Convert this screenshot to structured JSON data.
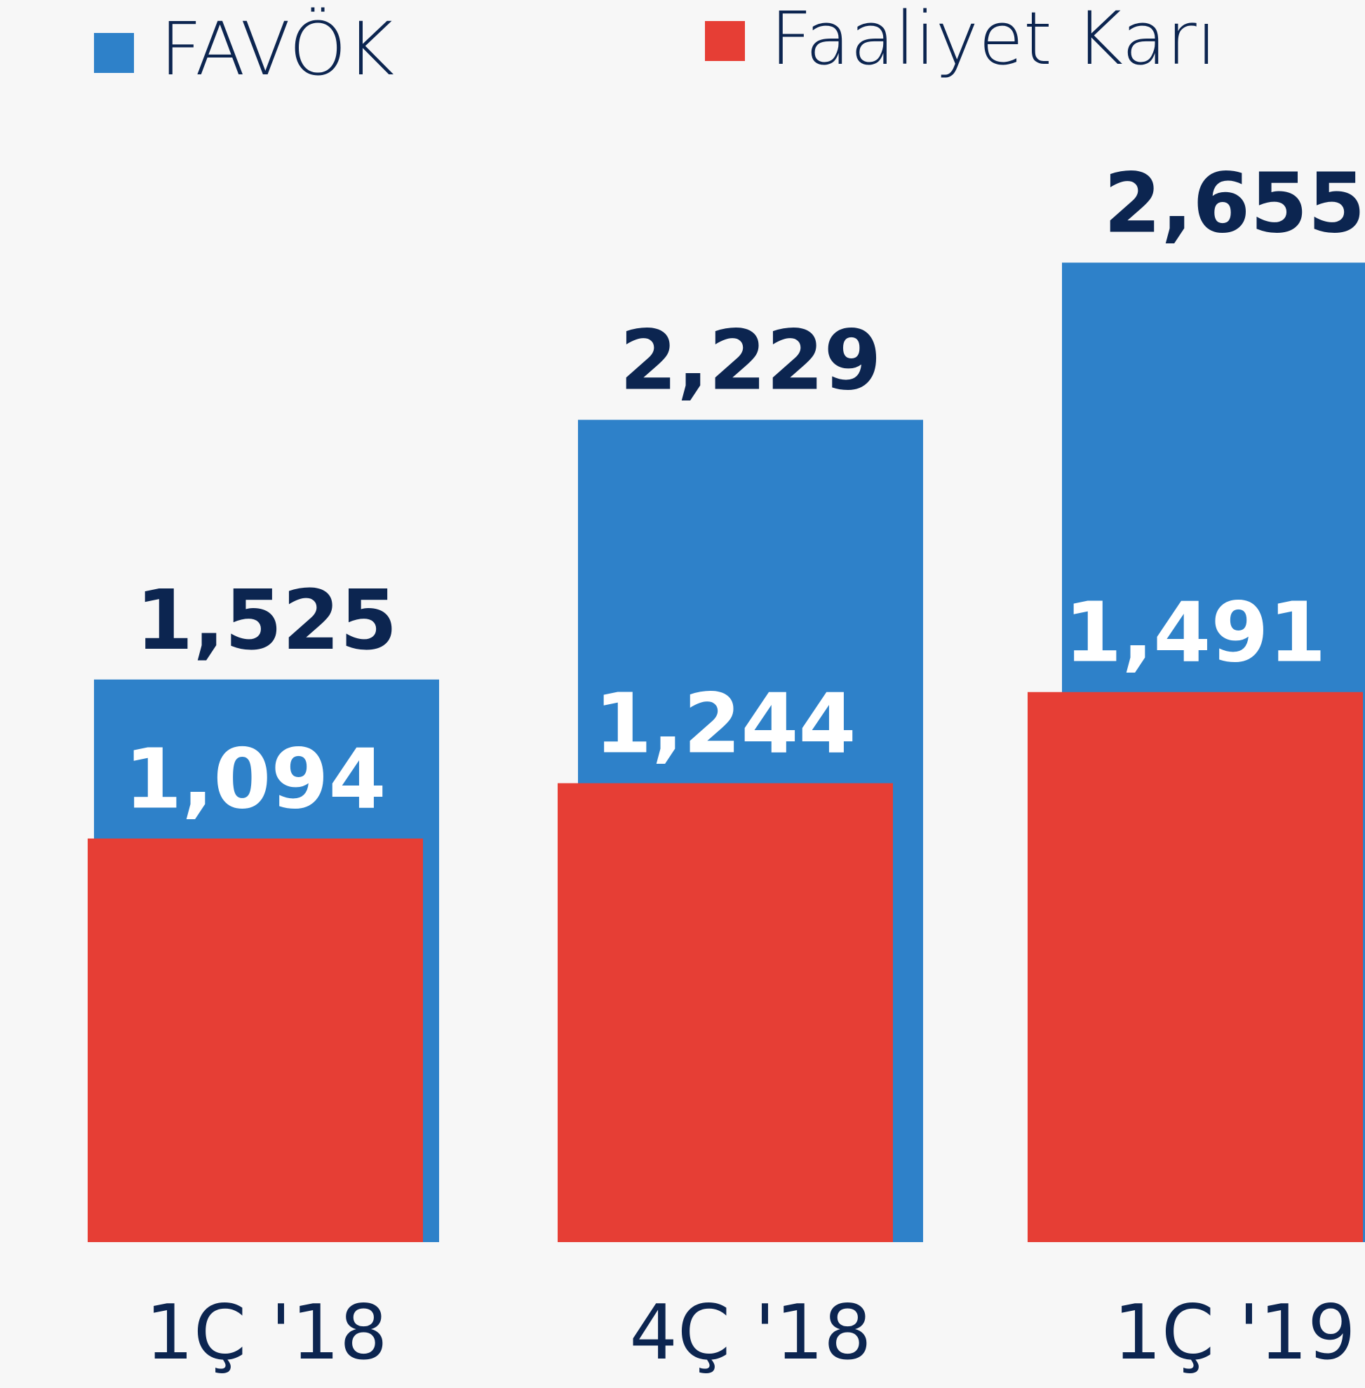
{
  "chart_data": {
    "type": "bar",
    "categories": [
      "1Ç '18",
      "4Ç '18",
      "1Ç '19"
    ],
    "series": [
      {
        "name": "FAVÖK",
        "color": "#2e81c9",
        "values": [
          1525,
          2229,
          2655
        ],
        "value_labels": [
          "1,525",
          "2,229",
          "2,655"
        ]
      },
      {
        "name": "Faaliyet Karı",
        "color": "#e63e35",
        "values": [
          1094,
          1244,
          1491
        ],
        "value_labels": [
          "1,094",
          "1,244",
          "1,491"
        ]
      }
    ],
    "ylim": [
      0,
      3000
    ]
  }
}
